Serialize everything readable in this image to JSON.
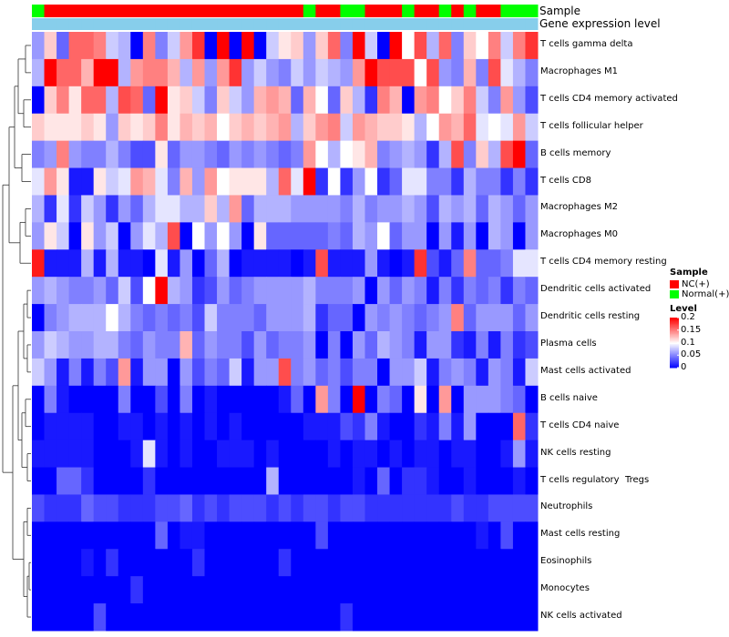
{
  "chart_data": {
    "type": "heatmap",
    "title": "",
    "annotation_labels": {
      "sample": "Sample",
      "gene_expression": "Gene expression level"
    },
    "row_labels": [
      "T cells gamma delta",
      "Macrophages M1",
      "T cells CD4 memory activated",
      "T cells follicular helper",
      "B cells memory",
      "T cells CD8",
      "Macrophages M2",
      "Macrophages M0",
      "T cells CD4 memory resting",
      "Dendritic cells activated",
      "Dendritic cells resting",
      "Plasma cells",
      "Mast cells activated",
      "B cells naive",
      "T cells CD4 naive",
      "NK cells resting",
      "T cells regulatory  Tregs",
      "Neutrophils",
      "Mast cells resting",
      "Eosinophils",
      "Monocytes",
      "NK cells activated"
    ],
    "sample_groups": [
      "Normal(+)",
      "NC(+)",
      "NC(+)",
      "NC(+)",
      "NC(+)",
      "NC(+)",
      "NC(+)",
      "NC(+)",
      "NC(+)",
      "NC(+)",
      "NC(+)",
      "NC(+)",
      "NC(+)",
      "NC(+)",
      "NC(+)",
      "NC(+)",
      "NC(+)",
      "NC(+)",
      "NC(+)",
      "NC(+)",
      "NC(+)",
      "NC(+)",
      "Normal(+)",
      "NC(+)",
      "NC(+)",
      "Normal(+)",
      "Normal(+)",
      "NC(+)",
      "NC(+)",
      "NC(+)",
      "Normal(+)",
      "NC(+)",
      "NC(+)",
      "Normal(+)",
      "NC(+)",
      "Normal(+)",
      "NC(+)",
      "NC(+)",
      "Normal(+)",
      "Normal(+)",
      "Normal(+)"
    ],
    "gene_expression_level": [
      0.1,
      0.1,
      0.1,
      0.1,
      0.1,
      0.1,
      0.1,
      0.1,
      0.1,
      0.1,
      0.1,
      0.1,
      0.1,
      0.1,
      0.1,
      0.1,
      0.1,
      0.1,
      0.1,
      0.1,
      0.1,
      0.1,
      0.1,
      0.1,
      0.1,
      0.1,
      0.1,
      0.1,
      0.1,
      0.1,
      0.1,
      0.1,
      0.1,
      0.1,
      0.1,
      0.1,
      0.1,
      0.1,
      0.1,
      0.1,
      0.1
    ],
    "values": [
      [
        0.06,
        0.12,
        0.04,
        0.16,
        0.16,
        0.15,
        0.08,
        0.07,
        0.0,
        0.15,
        0.05,
        0.08,
        0.14,
        0.18,
        0.0,
        0.2,
        0.0,
        0.2,
        0.0,
        0.08,
        0.11,
        0.12,
        0.06,
        0.12,
        0.16,
        0.05,
        0.2,
        0.08,
        0.0,
        0.2,
        0.1,
        0.17,
        0.07,
        0.16,
        0.05,
        0.12,
        0.1,
        0.15,
        0.08,
        0.15,
        0.18
      ],
      [
        0.07,
        0.2,
        0.16,
        0.16,
        0.13,
        0.2,
        0.2,
        0.07,
        0.14,
        0.15,
        0.15,
        0.13,
        0.07,
        0.14,
        0.06,
        0.14,
        0.18,
        0.06,
        0.08,
        0.06,
        0.05,
        0.08,
        0.06,
        0.08,
        0.07,
        0.06,
        0.14,
        0.2,
        0.17,
        0.17,
        0.17,
        0.1,
        0.17,
        0.06,
        0.05,
        0.13,
        0.05,
        0.17,
        0.09,
        0.07,
        0.05
      ],
      [
        0.0,
        0.12,
        0.15,
        0.11,
        0.16,
        0.16,
        0.07,
        0.17,
        0.16,
        0.04,
        0.2,
        0.11,
        0.12,
        0.08,
        0.05,
        0.12,
        0.08,
        0.06,
        0.13,
        0.14,
        0.13,
        0.04,
        0.13,
        0.1,
        0.04,
        0.12,
        0.07,
        0.02,
        0.15,
        0.13,
        0.0,
        0.14,
        0.15,
        0.1,
        0.12,
        0.15,
        0.08,
        0.05,
        0.14,
        0.06,
        0.03
      ],
      [
        0.12,
        0.11,
        0.11,
        0.11,
        0.12,
        0.11,
        0.06,
        0.12,
        0.11,
        0.12,
        0.15,
        0.11,
        0.13,
        0.12,
        0.13,
        0.1,
        0.12,
        0.13,
        0.12,
        0.13,
        0.14,
        0.07,
        0.12,
        0.14,
        0.15,
        0.08,
        0.14,
        0.13,
        0.12,
        0.12,
        0.11,
        0.07,
        0.1,
        0.14,
        0.13,
        0.16,
        0.09,
        0.1,
        0.09,
        0.14,
        0.08
      ],
      [
        0.05,
        0.06,
        0.15,
        0.06,
        0.05,
        0.05,
        0.07,
        0.05,
        0.03,
        0.03,
        0.11,
        0.04,
        0.06,
        0.06,
        0.05,
        0.04,
        0.06,
        0.05,
        0.06,
        0.05,
        0.04,
        0.05,
        0.14,
        0.1,
        0.07,
        0.1,
        0.11,
        0.13,
        0.05,
        0.06,
        0.07,
        0.06,
        0.02,
        0.07,
        0.17,
        0.05,
        0.12,
        0.07,
        0.17,
        0.2,
        0.04
      ],
      [
        0.09,
        0.14,
        0.11,
        0.01,
        0.01,
        0.11,
        0.08,
        0.09,
        0.14,
        0.13,
        0.09,
        0.05,
        0.13,
        0.06,
        0.14,
        0.1,
        0.11,
        0.11,
        0.11,
        0.07,
        0.16,
        0.09,
        0.2,
        0.02,
        0.1,
        0.02,
        0.06,
        0.1,
        0.02,
        0.04,
        0.09,
        0.09,
        0.05,
        0.05,
        0.02,
        0.07,
        0.05,
        0.05,
        0.02,
        0.05,
        0.02
      ],
      [
        0.07,
        0.02,
        0.09,
        0.02,
        0.08,
        0.06,
        0.02,
        0.06,
        0.04,
        0.07,
        0.09,
        0.09,
        0.07,
        0.07,
        0.12,
        0.07,
        0.14,
        0.04,
        0.07,
        0.07,
        0.07,
        0.06,
        0.06,
        0.06,
        0.06,
        0.05,
        0.07,
        0.05,
        0.06,
        0.06,
        0.07,
        0.06,
        0.03,
        0.07,
        0.06,
        0.07,
        0.04,
        0.07,
        0.06,
        0.04,
        0.06
      ],
      [
        0.06,
        0.11,
        0.08,
        0.0,
        0.11,
        0.06,
        0.08,
        0.0,
        0.06,
        0.09,
        0.07,
        0.17,
        0.0,
        0.1,
        0.06,
        0.1,
        0.06,
        0.0,
        0.11,
        0.04,
        0.04,
        0.04,
        0.04,
        0.04,
        0.05,
        0.04,
        0.07,
        0.06,
        0.1,
        0.04,
        0.06,
        0.06,
        0.0,
        0.06,
        0.01,
        0.06,
        0.0,
        0.07,
        0.06,
        0.0,
        0.06
      ],
      [
        0.19,
        0.01,
        0.01,
        0.01,
        0.07,
        0.01,
        0.07,
        0.01,
        0.01,
        0.0,
        0.09,
        0.01,
        0.06,
        0.0,
        0.04,
        0.07,
        0.0,
        0.01,
        0.01,
        0.01,
        0.01,
        0.0,
        0.01,
        0.17,
        0.01,
        0.01,
        0.01,
        0.06,
        0.01,
        0.0,
        0.01,
        0.18,
        0.03,
        0.01,
        0.04,
        0.15,
        0.04,
        0.04,
        0.05,
        0.09,
        0.09
      ],
      [
        0.06,
        0.07,
        0.06,
        0.05,
        0.05,
        0.06,
        0.04,
        0.08,
        0.03,
        0.1,
        0.2,
        0.07,
        0.06,
        0.02,
        0.03,
        0.06,
        0.04,
        0.05,
        0.06,
        0.06,
        0.06,
        0.06,
        0.07,
        0.05,
        0.05,
        0.05,
        0.06,
        0.0,
        0.06,
        0.04,
        0.06,
        0.05,
        0.01,
        0.05,
        0.02,
        0.05,
        0.04,
        0.05,
        0.02,
        0.05,
        0.04
      ],
      [
        0.0,
        0.05,
        0.06,
        0.07,
        0.07,
        0.07,
        0.1,
        0.07,
        0.05,
        0.04,
        0.05,
        0.04,
        0.05,
        0.03,
        0.08,
        0.05,
        0.05,
        0.05,
        0.04,
        0.06,
        0.06,
        0.06,
        0.07,
        0.02,
        0.04,
        0.04,
        0.0,
        0.06,
        0.05,
        0.06,
        0.05,
        0.04,
        0.05,
        0.06,
        0.15,
        0.04,
        0.06,
        0.06,
        0.06,
        0.04,
        0.06
      ],
      [
        0.06,
        0.08,
        0.07,
        0.06,
        0.06,
        0.07,
        0.07,
        0.05,
        0.04,
        0.06,
        0.05,
        0.05,
        0.13,
        0.04,
        0.06,
        0.05,
        0.05,
        0.03,
        0.06,
        0.04,
        0.05,
        0.05,
        0.06,
        0.0,
        0.05,
        0.0,
        0.06,
        0.04,
        0.07,
        0.06,
        0.05,
        0.01,
        0.06,
        0.06,
        0.02,
        0.01,
        0.05,
        0.01,
        0.05,
        0.02,
        0.03
      ],
      [
        0.08,
        0.06,
        0.01,
        0.05,
        0.01,
        0.05,
        0.03,
        0.14,
        0.01,
        0.06,
        0.06,
        0.0,
        0.06,
        0.03,
        0.05,
        0.04,
        0.08,
        0.01,
        0.06,
        0.06,
        0.17,
        0.05,
        0.06,
        0.04,
        0.05,
        0.03,
        0.05,
        0.05,
        0.0,
        0.06,
        0.06,
        0.08,
        0.01,
        0.05,
        0.06,
        0.05,
        0.01,
        0.06,
        0.05,
        0.01,
        0.08
      ],
      [
        0.0,
        0.05,
        0.01,
        0.0,
        0.0,
        0.0,
        0.0,
        0.05,
        0.0,
        0.0,
        0.03,
        0.0,
        0.05,
        0.0,
        0.01,
        0.0,
        0.0,
        0.0,
        0.0,
        0.0,
        0.01,
        0.04,
        0.0,
        0.14,
        0.05,
        0.0,
        0.2,
        0.0,
        0.05,
        0.04,
        0.0,
        0.11,
        0.0,
        0.14,
        0.0,
        0.06,
        0.06,
        0.06,
        0.05,
        0.04,
        0.0
      ],
      [
        0.0,
        0.01,
        0.01,
        0.01,
        0.01,
        0.0,
        0.0,
        0.01,
        0.01,
        0.0,
        0.01,
        0.0,
        0.01,
        0.0,
        0.01,
        0.0,
        0.01,
        0.0,
        0.0,
        0.0,
        0.0,
        0.0,
        0.01,
        0.01,
        0.01,
        0.03,
        0.02,
        0.05,
        0.01,
        0.0,
        0.0,
        0.02,
        0.01,
        0.05,
        0.01,
        0.06,
        0.0,
        0.0,
        0.0,
        0.16,
        0.02
      ],
      [
        0.01,
        0.01,
        0.01,
        0.01,
        0.01,
        0.0,
        0.0,
        0.0,
        0.01,
        0.09,
        0.01,
        0.0,
        0.01,
        0.0,
        0.0,
        0.01,
        0.01,
        0.01,
        0.0,
        0.01,
        0.0,
        0.0,
        0.0,
        0.0,
        0.01,
        0.0,
        0.01,
        0.01,
        0.0,
        0.01,
        0.0,
        0.01,
        0.01,
        0.0,
        0.01,
        0.01,
        0.0,
        0.0,
        0.01,
        0.06,
        0.01
      ],
      [
        0.0,
        0.0,
        0.04,
        0.04,
        0.02,
        0.0,
        0.0,
        0.0,
        0.0,
        0.02,
        0.0,
        0.0,
        0.0,
        0.0,
        0.0,
        0.0,
        0.0,
        0.0,
        0.0,
        0.07,
        0.0,
        0.0,
        0.0,
        0.0,
        0.0,
        0.0,
        0.01,
        0.0,
        0.04,
        0.0,
        0.02,
        0.02,
        0.01,
        0.0,
        0.0,
        0.01,
        0.0,
        0.0,
        0.0,
        0.01,
        0.0
      ],
      [
        0.03,
        0.02,
        0.02,
        0.02,
        0.04,
        0.03,
        0.03,
        0.02,
        0.02,
        0.02,
        0.03,
        0.03,
        0.04,
        0.02,
        0.03,
        0.02,
        0.03,
        0.03,
        0.03,
        0.02,
        0.03,
        0.02,
        0.03,
        0.03,
        0.02,
        0.03,
        0.03,
        0.02,
        0.02,
        0.02,
        0.02,
        0.02,
        0.02,
        0.02,
        0.03,
        0.02,
        0.02,
        0.03,
        0.03,
        0.03,
        0.03
      ],
      [
        0.0,
        0.0,
        0.0,
        0.0,
        0.0,
        0.0,
        0.0,
        0.0,
        0.0,
        0.0,
        0.04,
        0.0,
        0.01,
        0.01,
        0.0,
        0.0,
        0.0,
        0.0,
        0.0,
        0.0,
        0.0,
        0.0,
        0.0,
        0.03,
        0.0,
        0.0,
        0.0,
        0.0,
        0.0,
        0.0,
        0.0,
        0.0,
        0.0,
        0.0,
        0.0,
        0.0,
        0.01,
        0.0,
        0.03,
        0.0,
        0.0
      ],
      [
        0.0,
        0.0,
        0.0,
        0.0,
        0.01,
        0.0,
        0.02,
        0.0,
        0.0,
        0.0,
        0.0,
        0.0,
        0.0,
        0.02,
        0.0,
        0.0,
        0.0,
        0.0,
        0.0,
        0.0,
        0.02,
        0.0,
        0.0,
        0.0,
        0.0,
        0.0,
        0.0,
        0.0,
        0.0,
        0.0,
        0.0,
        0.0,
        0.0,
        0.0,
        0.0,
        0.0,
        0.0,
        0.0,
        0.0,
        0.0,
        0.0
      ],
      [
        0.0,
        0.0,
        0.0,
        0.0,
        0.0,
        0.0,
        0.0,
        0.0,
        0.02,
        0.0,
        0.0,
        0.0,
        0.0,
        0.0,
        0.0,
        0.0,
        0.0,
        0.0,
        0.0,
        0.0,
        0.0,
        0.0,
        0.0,
        0.0,
        0.0,
        0.0,
        0.0,
        0.0,
        0.0,
        0.0,
        0.0,
        0.0,
        0.0,
        0.0,
        0.0,
        0.0,
        0.0,
        0.0,
        0.0,
        0.0,
        0.0
      ],
      [
        0.0,
        0.0,
        0.0,
        0.0,
        0.0,
        0.03,
        0.0,
        0.0,
        0.0,
        0.0,
        0.0,
        0.0,
        0.0,
        0.0,
        0.0,
        0.0,
        0.0,
        0.0,
        0.0,
        0.0,
        0.0,
        0.0,
        0.0,
        0.0,
        0.0,
        0.02,
        0.0,
        0.0,
        0.0,
        0.0,
        0.0,
        0.0,
        0.0,
        0.0,
        0.0,
        0.0,
        0.0,
        0.0,
        0.0,
        0.0,
        0.0
      ]
    ],
    "color_scale": {
      "low": "#0000ff",
      "mid": "#ffffff",
      "high": "#ff0000",
      "range": [
        0,
        0.2
      ]
    },
    "legend": {
      "sample_title": "Sample",
      "sample_entries": [
        {
          "label": "NC(+)",
          "color": "#ff0000"
        },
        {
          "label": "Normal(+)",
          "color": "#00ff00"
        }
      ],
      "level_title": "Level",
      "level_ticks": [
        {
          "value": 0.2,
          "label": "0.2"
        },
        {
          "value": 0.15,
          "label": "0.15"
        },
        {
          "value": 0.1,
          "label": "0.1"
        },
        {
          "value": 0.05,
          "label": "0.05"
        },
        {
          "value": 0,
          "label": "0"
        }
      ],
      "placement": "right"
    },
    "gene_expression_color": "#87ceeb"
  }
}
